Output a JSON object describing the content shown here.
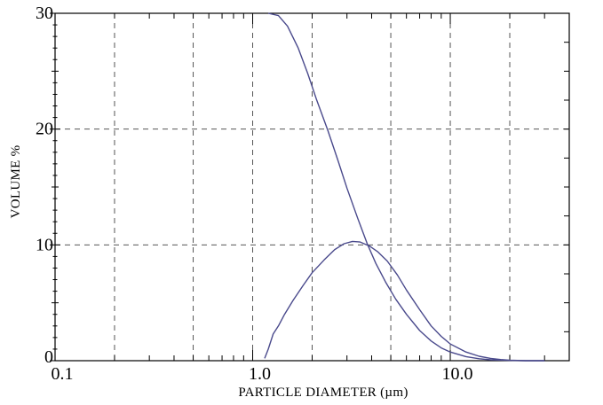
{
  "chart_data": {
    "type": "line",
    "title": "",
    "xlabel": "PARTICLE DIAMETER (µm)",
    "ylabel": "VOLUME %",
    "x_scale": "log",
    "xlim": [
      0.1,
      40
    ],
    "ylim": [
      0,
      30
    ],
    "x_ticks": [
      {
        "value": 0.1,
        "label": "0.1"
      },
      {
        "value": 1.0,
        "label": "1.0"
      },
      {
        "value": 10.0,
        "label": "10.0"
      }
    ],
    "y_ticks": [
      {
        "value": 0,
        "label": "0"
      },
      {
        "value": 10,
        "label": "10"
      },
      {
        "value": 20,
        "label": "20"
      },
      {
        "value": 30,
        "label": "30"
      }
    ],
    "x_gridlines": [
      0.2,
      0.5,
      1.0,
      2.0,
      5.0,
      10.0,
      20.0
    ],
    "y_gridlines": [
      10,
      20
    ],
    "grid": true,
    "line_color": "#4a4a8c",
    "series": [
      {
        "points": [
          [
            1.2,
            30.0
          ],
          [
            1.35,
            29.8
          ],
          [
            1.5,
            28.9
          ],
          [
            1.7,
            27.0
          ],
          [
            1.9,
            24.8
          ],
          [
            2.1,
            22.6
          ],
          [
            2.4,
            19.9
          ],
          [
            2.7,
            17.3
          ],
          [
            3.0,
            14.9
          ],
          [
            3.4,
            12.3
          ],
          [
            3.8,
            10.1
          ],
          [
            4.2,
            8.4
          ],
          [
            4.7,
            6.8
          ],
          [
            5.3,
            5.3
          ],
          [
            6.0,
            4.0
          ],
          [
            7.0,
            2.6
          ],
          [
            8.0,
            1.7
          ],
          [
            9.0,
            1.1
          ],
          [
            10.0,
            0.75
          ],
          [
            12.0,
            0.35
          ],
          [
            14.0,
            0.17
          ],
          [
            16.0,
            0.08
          ],
          [
            20.0,
            0.02
          ],
          [
            24.0,
            0.0
          ],
          [
            30.0,
            0.0
          ]
        ]
      },
      {
        "points": [
          [
            1.15,
            0.2
          ],
          [
            1.2,
            1.0
          ],
          [
            1.27,
            2.3
          ],
          [
            1.35,
            3.0
          ],
          [
            1.45,
            4.0
          ],
          [
            1.6,
            5.2
          ],
          [
            1.8,
            6.5
          ],
          [
            2.0,
            7.6
          ],
          [
            2.3,
            8.7
          ],
          [
            2.6,
            9.6
          ],
          [
            2.9,
            10.1
          ],
          [
            3.2,
            10.3
          ],
          [
            3.5,
            10.25
          ],
          [
            3.9,
            9.9
          ],
          [
            4.3,
            9.4
          ],
          [
            4.8,
            8.6
          ],
          [
            5.4,
            7.4
          ],
          [
            6.0,
            6.1
          ],
          [
            7.0,
            4.4
          ],
          [
            8.0,
            3.0
          ],
          [
            9.0,
            2.1
          ],
          [
            10.0,
            1.45
          ],
          [
            12.0,
            0.75
          ],
          [
            14.0,
            0.38
          ],
          [
            16.0,
            0.2
          ],
          [
            18.0,
            0.1
          ],
          [
            20.0,
            0.04
          ],
          [
            24.0,
            0.0
          ],
          [
            30.0,
            0.0
          ]
        ]
      }
    ]
  }
}
